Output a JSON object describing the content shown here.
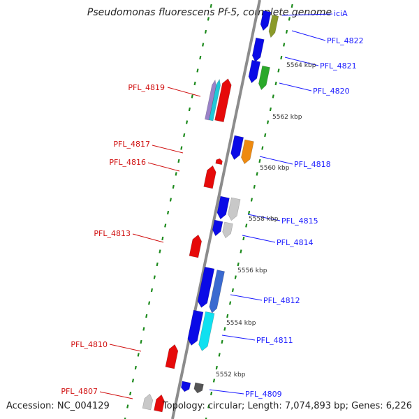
{
  "title": "Pseudomonas fluorescens Pf-5, complete genome",
  "accession": "Accession: NC_004129",
  "topology": "Topology: circular; Length: 7,074,893 bp; Genes: 6,226",
  "truncated_label": "iciA",
  "colors": {
    "backbone": "#8c8c8c",
    "tick": "#1c8a1c",
    "forward": "#0a0ae6",
    "reverse": "#e60a0a",
    "label_forward": "#1a1aff",
    "label_reverse": "#d01010",
    "scale_text": "#333333"
  },
  "scale_labels": [
    "5564 kbp",
    "5562 kbp",
    "5560 kbp",
    "5558 kbp",
    "5556 kbp",
    "5554 kbp",
    "5552 kbp"
  ],
  "right_labels": [
    "PFL_4822",
    "PFL_4821",
    "PFL_4820",
    "PFL_4818",
    "PFL_4815",
    "PFL_4814",
    "PFL_4812",
    "PFL_4811",
    "PFL_4809"
  ],
  "left_labels": [
    "PFL_4819",
    "PFL_4817",
    "PFL_4816",
    "PFL_4813",
    "PFL_4810",
    "PFL_4807"
  ]
}
